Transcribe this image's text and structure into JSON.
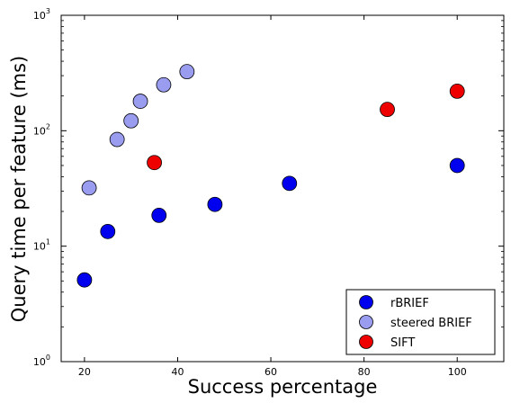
{
  "chart_data": {
    "type": "scatter",
    "title": "",
    "xlabel": "Success percentage",
    "ylabel": "Query time per feature (ms)",
    "xlim": [
      15,
      110
    ],
    "ylim": [
      1,
      1000
    ],
    "yscale": "log",
    "xticks": [
      20,
      40,
      60,
      80,
      100
    ],
    "yticks": [
      {
        "value": 1,
        "base": "10",
        "exp": "0"
      },
      {
        "value": 10,
        "base": "10",
        "exp": "1"
      },
      {
        "value": 100,
        "base": "10",
        "exp": "2"
      },
      {
        "value": 1000,
        "base": "10",
        "exp": "3"
      }
    ],
    "grid": false,
    "legend_position": "bottom-right",
    "series": [
      {
        "name": "rBRIEF",
        "color": "#0000ee",
        "points": [
          {
            "x": 20,
            "y": 5.1
          },
          {
            "x": 25,
            "y": 13.4
          },
          {
            "x": 36,
            "y": 18.5
          },
          {
            "x": 48,
            "y": 23
          },
          {
            "x": 64,
            "y": 35
          },
          {
            "x": 100,
            "y": 50
          }
        ]
      },
      {
        "name": "steered BRIEF",
        "color": "#9a9cf0",
        "points": [
          {
            "x": 21,
            "y": 32
          },
          {
            "x": 27,
            "y": 84
          },
          {
            "x": 30,
            "y": 122
          },
          {
            "x": 32,
            "y": 180
          },
          {
            "x": 37,
            "y": 250
          },
          {
            "x": 42,
            "y": 325
          }
        ]
      },
      {
        "name": "SIFT",
        "color": "#ee0000",
        "points": [
          {
            "x": 35,
            "y": 53
          },
          {
            "x": 85,
            "y": 153
          },
          {
            "x": 100,
            "y": 220
          }
        ]
      }
    ]
  }
}
